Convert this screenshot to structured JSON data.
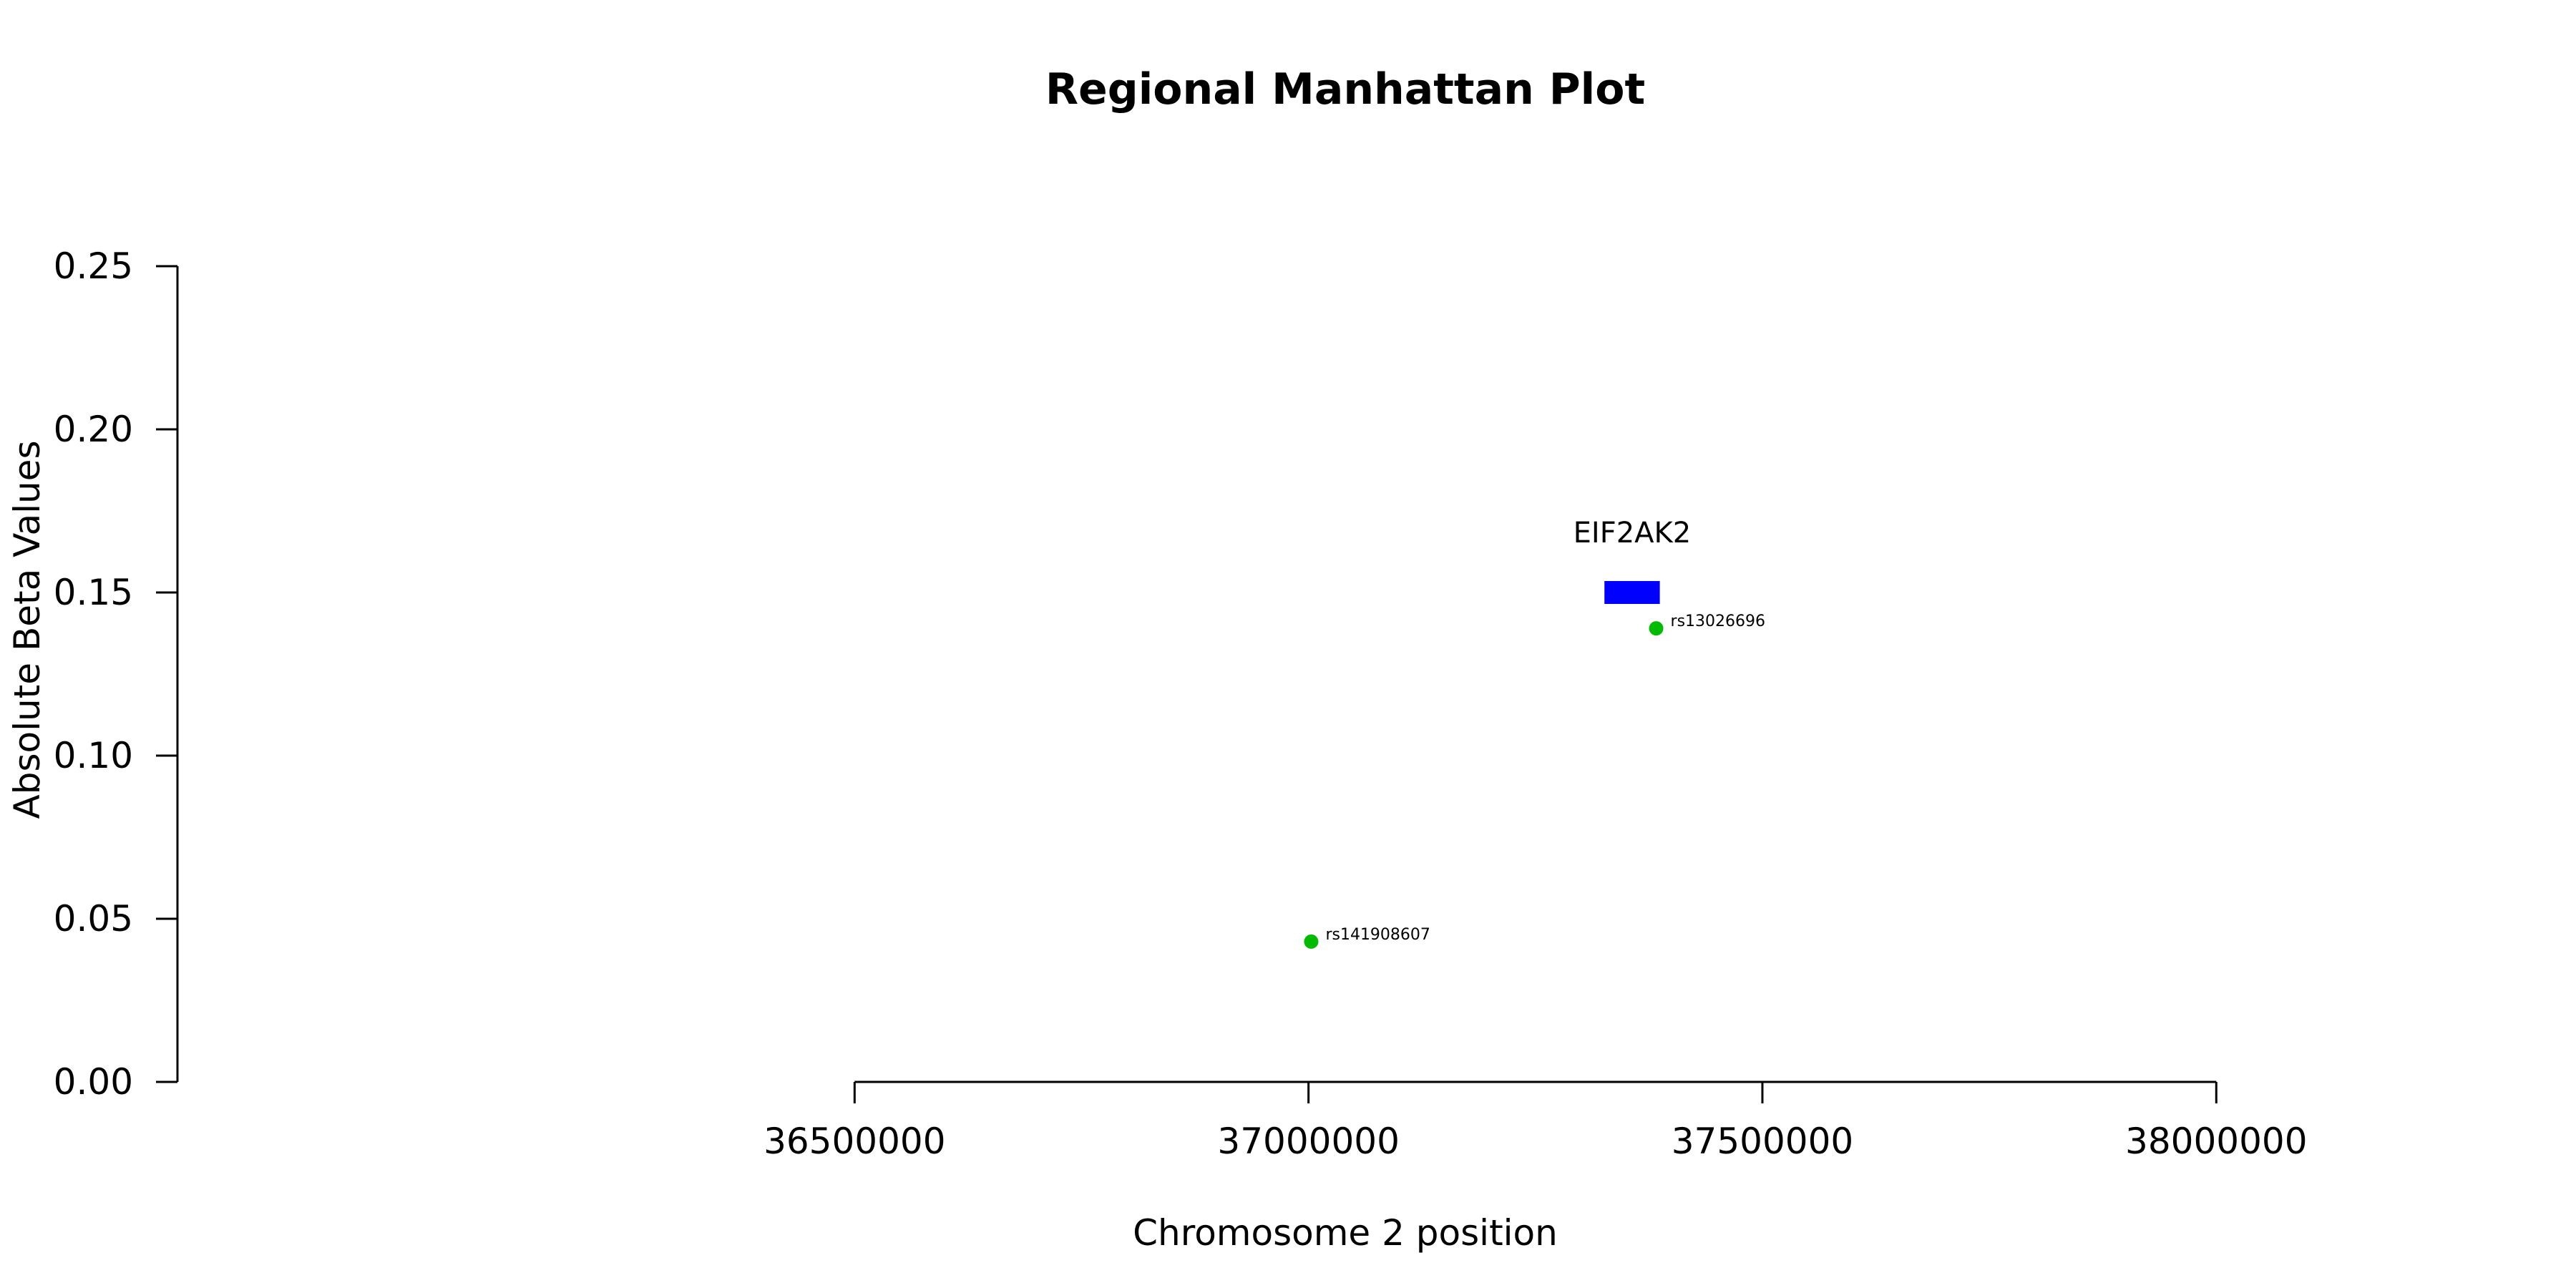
{
  "chart_data": {
    "type": "scatter",
    "title": "Regional Manhattan Plot",
    "xlabel": "Chromosome 2 position",
    "ylabel": "Absolute Beta Values",
    "xlim": [
      36000000,
      38360000
    ],
    "ylim": [
      0,
      0.25
    ],
    "x_ticks": [
      36500000,
      37000000,
      37500000,
      38000000
    ],
    "x_tick_labels": [
      "36500000",
      "37000000",
      "37500000",
      "38000000"
    ],
    "y_ticks": [
      0,
      0.05,
      0.1,
      0.15,
      0.2,
      0.25
    ],
    "y_tick_labels": [
      "0.00",
      "0.05",
      "0.10",
      "0.15",
      "0.20",
      "0.25"
    ],
    "grid": false,
    "points": [
      {
        "label": "rs141908607",
        "x": 37003000,
        "y": 0.043,
        "color": "#00bb00"
      },
      {
        "label": "rs13026696",
        "x": 37383000,
        "y": 0.139,
        "color": "#00bb00"
      }
    ],
    "genes": [
      {
        "name": "EIF2AK2",
        "start": 37326000,
        "end": 37387000,
        "y": 0.15,
        "color": "#0000ff"
      }
    ]
  }
}
